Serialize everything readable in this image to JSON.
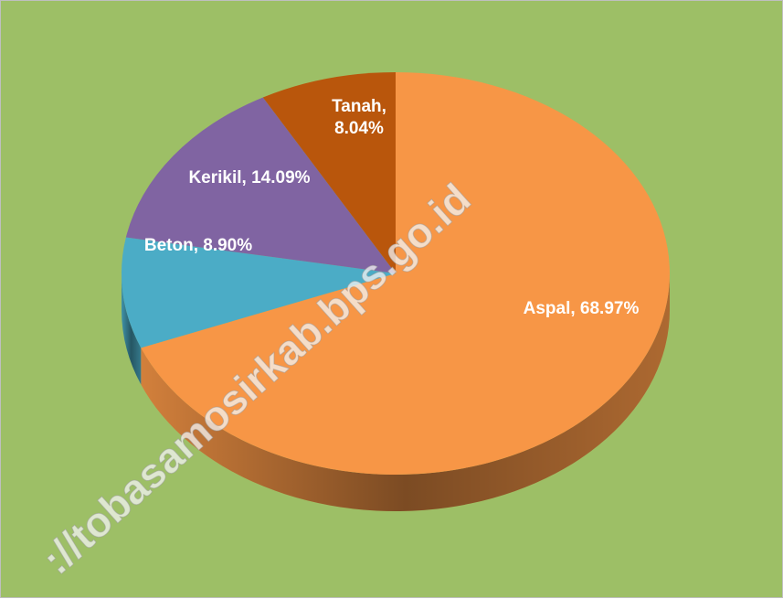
{
  "chart_data": {
    "type": "pie",
    "values": [
      68.97,
      8.9,
      14.09,
      8.04
    ],
    "value_labels": [
      "Aspal, 68.97%",
      "Beton, 8.90%",
      "Kerikil, 14.09%",
      "Tanah, 8.04%"
    ],
    "colors": [
      "#f79646",
      "#4bacc6",
      "#8064a2",
      "#b9560c"
    ],
    "watermark": "://tobasamosirkab.bps.go.id"
  }
}
